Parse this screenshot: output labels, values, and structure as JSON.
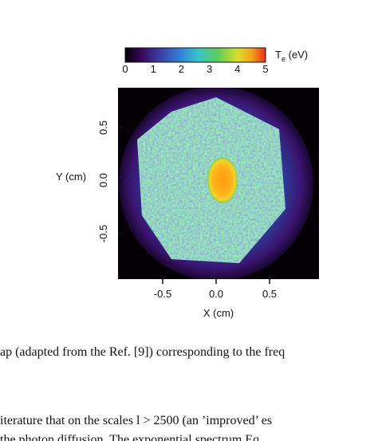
{
  "figure": {
    "colorbar": {
      "label_main": "T",
      "label_sub": "e",
      "label_unit": " (eV)",
      "ticks": [
        "0",
        "1",
        "2",
        "3",
        "4",
        "5"
      ]
    },
    "y_axis": {
      "label": "Y (cm)",
      "ticks": [
        "0.5",
        "0.0",
        "-0.5"
      ]
    },
    "x_axis": {
      "label": "X (cm)",
      "ticks": [
        "-0.5",
        "0.0",
        "0.5"
      ]
    }
  },
  "caption": "ap (adapted from the Ref. [9]) corresponding to the freq",
  "body": {
    "lines": [
      "iterature that on the scales l > 2500 (an ’improved’ es",
      "the photon diffusion. The exponential spectrum Eq"
    ]
  }
}
